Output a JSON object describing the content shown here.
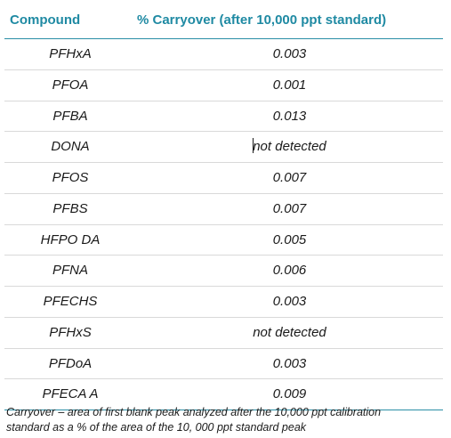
{
  "table": {
    "headers": {
      "compound": "Compound",
      "carryover": "% Carryover (after 10,000 ppt standard)"
    },
    "rows": [
      {
        "compound": "PFHxA",
        "carryover": "0.003"
      },
      {
        "compound": "PFOA",
        "carryover": "0.001"
      },
      {
        "compound": "PFBA",
        "carryover": "0.013"
      },
      {
        "compound": "DONA",
        "carryover": "not detected"
      },
      {
        "compound": "PFOS",
        "carryover": "0.007"
      },
      {
        "compound": "PFBS",
        "carryover": "0.007"
      },
      {
        "compound": "HFPO DA",
        "carryover": "0.005"
      },
      {
        "compound": "PFNA",
        "carryover": "0.006"
      },
      {
        "compound": "PFECHS",
        "carryover": "0.003"
      },
      {
        "compound": "PFHxS",
        "carryover": "not detected"
      },
      {
        "compound": "PFDoA",
        "carryover": "0.003"
      },
      {
        "compound": "PFECA A",
        "carryover": "0.009"
      }
    ]
  },
  "footnote": {
    "line1": "Carryover – area of first blank peak analyzed after the 10,000 ppt calibration",
    "line2": "standard as a % of the area of the 10, 000 ppt standard peak"
  },
  "colors": {
    "header_text": "#1f8aa3",
    "rule": "#2a8fa6",
    "row_divider": "#d9d9d9"
  }
}
